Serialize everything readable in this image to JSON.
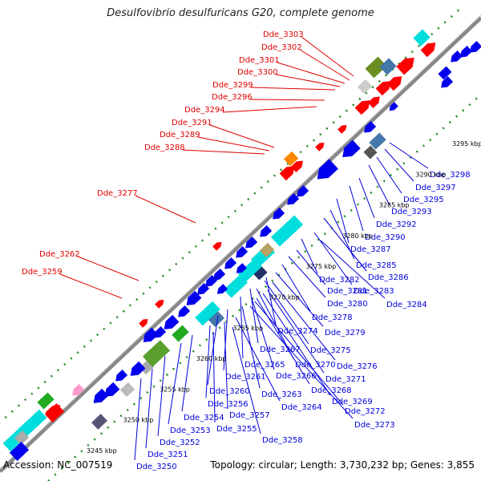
{
  "title": "Desulfovibrio desulfuricans G20, complete genome",
  "footer": {
    "accession": "Accession: NC_007519",
    "summary": "Topology: circular; Length: 3,730,232 bp; Genes: 3,855"
  },
  "colors": {
    "backbone": "#888888",
    "forward_label": "#e00000",
    "reverse_label": "#0000dd",
    "forward_gene": "#ff0000",
    "reverse_gene": "#0000ee",
    "tick": "#228b22"
  },
  "kbp_labels": [
    {
      "text": "3245 kbp",
      "kbp": 3245
    },
    {
      "text": "3250 kbp",
      "kbp": 3250
    },
    {
      "text": "3255 kbp",
      "kbp": 3255
    },
    {
      "text": "3260 kbp",
      "kbp": 3260
    },
    {
      "text": "3265 kbp",
      "kbp": 3265
    },
    {
      "text": "3270 kbp",
      "kbp": 3270
    },
    {
      "text": "3275 kbp",
      "kbp": 3275
    },
    {
      "text": "3280 kbp",
      "kbp": 3280
    },
    {
      "text": "3285 kbp",
      "kbp": 3285
    },
    {
      "text": "3290 kbp",
      "kbp": 3290
    },
    {
      "text": "3295 kbp",
      "kbp": 3295
    }
  ],
  "forward_labels": [
    "Dde_3303",
    "Dde_3302",
    "Dde_3301",
    "Dde_3300",
    "Dde_3299",
    "Dde_3296",
    "Dde_3294",
    "Dde_3291",
    "Dde_3289",
    "Dde_3288",
    "Dde_3277",
    "Dde_3262",
    "Dde_3259"
  ],
  "reverse_labels": [
    "Dde_3298",
    "Dde_3297",
    "Dde_3295",
    "Dde_3293",
    "Dde_3292",
    "Dde_3290",
    "Dde_3287",
    "Dde_3285",
    "Dde_3286",
    "Dde_3282",
    "Dde_3283",
    "Dde_3281",
    "Dde_3284",
    "Dde_3280",
    "Dde_3278",
    "Dde_3274",
    "Dde_3279",
    "Dde_3267",
    "Dde_3275",
    "Dde_3265",
    "Dde_3270",
    "Dde_3276",
    "Dde_3266",
    "Dde_3271",
    "Dde_3261",
    "Dde_3263",
    "Dde_3268",
    "Dde_3260",
    "Dde_3269",
    "Dde_3256",
    "Dde_3264",
    "Dde_3254",
    "Dde_3257",
    "Dde_3272",
    "Dde_3253",
    "Dde_3255",
    "Dde_3273",
    "Dde_3258",
    "Dde_3252",
    "Dde_3251",
    "Dde_3250"
  ]
}
